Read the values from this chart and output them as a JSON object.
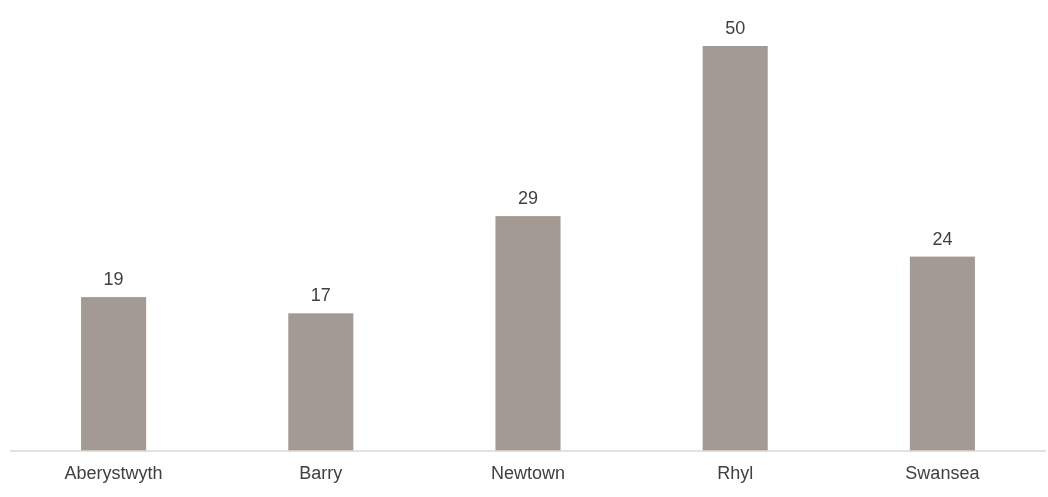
{
  "chart_data": {
    "type": "bar",
    "categories": [
      "Aberystwyth",
      "Barry",
      "Newtown",
      "Rhyl",
      "Swansea"
    ],
    "values": [
      19,
      17,
      29,
      50,
      24
    ],
    "color": "#a39a93",
    "data_labels": true
  }
}
